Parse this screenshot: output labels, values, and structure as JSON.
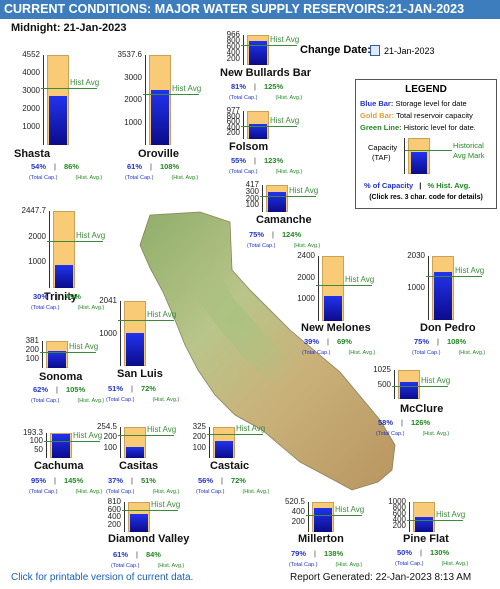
{
  "header": {
    "title": "CURRENT CONDITIONS: MAJOR WATER SUPPLY RESERVOIRS:21-JAN-2023"
  },
  "midnight_label": "Midnight: 21-Jan-2023",
  "change_date": {
    "label": "Change Date:",
    "value": "21-Jan-2023"
  },
  "legend": {
    "title": "LEGEND",
    "blue_key": "Blue Bar:",
    "blue_text": "Storage level for date",
    "gold_key": "Gold Bar:",
    "gold_text": "Total reservoir capacity",
    "green_key": "Green Line:",
    "green_text": "Historic level for date.",
    "capacity_label": "Capacity",
    "taf_label": "(TAF)",
    "hist_mark_label": "Historical",
    "avg_mark_label": "Avg Mark",
    "pct_capacity": "% of Capacity",
    "sep": "|",
    "pct_hist": "% Hist. Avg.",
    "click_note": "(Click res. 3 char. code for details)"
  },
  "labels": {
    "hist_avg": "Hist Avg",
    "total_cap": "(Total Cap.)",
    "hist_avg_short": "(Hist. Avg.)",
    "sep": "|"
  },
  "reservoirs": [
    {
      "name": "Shasta",
      "capacity_label": "4552",
      "ticks": [
        "4000",
        "3000",
        "2000",
        "1000"
      ],
      "pct_capacity": "54%",
      "pct_hist": "86%",
      "storage_frac": 0.54,
      "hist_frac": 0.63
    },
    {
      "name": "Oroville",
      "capacity_label": "3537.6",
      "ticks": [
        "3000",
        "2000",
        "1000"
      ],
      "pct_capacity": "61%",
      "pct_hist": "108%",
      "storage_frac": 0.61,
      "hist_frac": 0.57
    },
    {
      "name": "New Bullards Bar",
      "capacity_label": "966",
      "ticks": [
        "800",
        "600",
        "400",
        "200"
      ],
      "pct_capacity": "81%",
      "pct_hist": "125%",
      "storage_frac": 0.81,
      "hist_frac": 0.65
    },
    {
      "name": "Folsom",
      "capacity_label": "977",
      "ticks": [
        "800",
        "600",
        "400",
        "200"
      ],
      "pct_capacity": "55%",
      "pct_hist": "123%",
      "storage_frac": 0.55,
      "hist_frac": 0.45
    },
    {
      "name": "Camanche",
      "capacity_label": "417",
      "ticks": [
        "300",
        "200",
        "100"
      ],
      "pct_capacity": "75%",
      "pct_hist": "124%",
      "storage_frac": 0.75,
      "hist_frac": 0.61
    },
    {
      "name": "Trinity",
      "capacity_label": "2447.7",
      "ticks": [
        "2000",
        "1000"
      ],
      "pct_capacity": "30%",
      "pct_hist": "49%",
      "storage_frac": 0.3,
      "hist_frac": 0.61
    },
    {
      "name": "New Melones",
      "capacity_label": "2400",
      "ticks": [
        "2000",
        "1000"
      ],
      "pct_capacity": "39%",
      "pct_hist": "69%",
      "storage_frac": 0.39,
      "hist_frac": 0.56
    },
    {
      "name": "Don Pedro",
      "capacity_label": "2030",
      "ticks": [
        "1000"
      ],
      "pct_capacity": "75%",
      "pct_hist": "108%",
      "storage_frac": 0.75,
      "hist_frac": 0.69
    },
    {
      "name": "San Luis",
      "capacity_label": "2041",
      "ticks": [
        "1000"
      ],
      "pct_capacity": "51%",
      "pct_hist": "72%",
      "storage_frac": 0.51,
      "hist_frac": 0.71
    },
    {
      "name": "Sonoma",
      "capacity_label": "381",
      "ticks": [
        "200",
        "100"
      ],
      "pct_capacity": "62%",
      "pct_hist": "105%",
      "storage_frac": 0.62,
      "hist_frac": 0.59
    },
    {
      "name": "McClure",
      "capacity_label": "1025",
      "ticks": [
        "500"
      ],
      "pct_capacity": "58%",
      "pct_hist": "126%",
      "storage_frac": 0.58,
      "hist_frac": 0.46
    },
    {
      "name": "Cachuma",
      "capacity_label": "193.3",
      "ticks": [
        "100",
        "50"
      ],
      "pct_capacity": "95%",
      "pct_hist": "145%",
      "storage_frac": 0.95,
      "hist_frac": 0.66
    },
    {
      "name": "Casitas",
      "capacity_label": "254.5",
      "ticks": [
        "200",
        "100"
      ],
      "pct_capacity": "37%",
      "pct_hist": "51%",
      "storage_frac": 0.37,
      "hist_frac": 0.73
    },
    {
      "name": "Castaic",
      "capacity_label": "325",
      "ticks": [
        "200",
        "100"
      ],
      "pct_capacity": "56%",
      "pct_hist": "72%",
      "storage_frac": 0.56,
      "hist_frac": 0.78
    },
    {
      "name": "Diamond Valley",
      "capacity_label": "810",
      "ticks": [
        "600",
        "400",
        "200"
      ],
      "pct_capacity": "61%",
      "pct_hist": "84%",
      "storage_frac": 0.61,
      "hist_frac": 0.73
    },
    {
      "name": "Millerton",
      "capacity_label": "520.5",
      "ticks": [
        "400",
        "200"
      ],
      "pct_capacity": "79%",
      "pct_hist": "138%",
      "storage_frac": 0.79,
      "hist_frac": 0.57
    },
    {
      "name": "Pine Flat",
      "capacity_label": "1000",
      "ticks": [
        "800",
        "600",
        "400",
        "200"
      ],
      "pct_capacity": "50%",
      "pct_hist": "130%",
      "storage_frac": 0.5,
      "hist_frac": 0.39
    }
  ],
  "footer": {
    "printable_link": "Click for printable version of current data.",
    "report_generated": "Report Generated: 22-Jan-2023 8:13 AM"
  },
  "colors": {
    "header": "#3e7dbd",
    "gold": "#f9cb77",
    "blue": "#1a1acc",
    "green": "#3d8a3d"
  }
}
